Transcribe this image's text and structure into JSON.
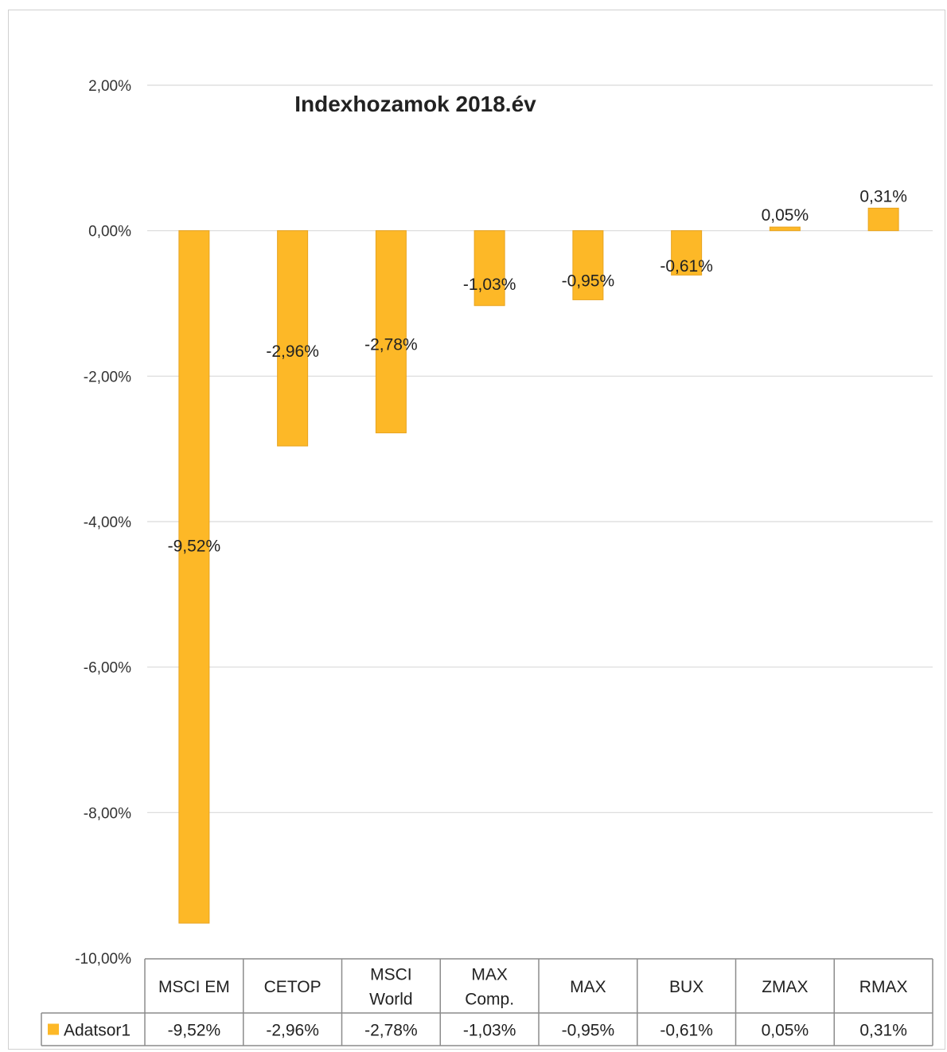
{
  "chart_data": {
    "type": "bar",
    "title": "Indexhozamok 2018.év",
    "categories": [
      [
        "MSCI EM"
      ],
      [
        "CETOP"
      ],
      [
        "MSCI",
        "World"
      ],
      [
        "MAX",
        "Comp."
      ],
      [
        "MAX"
      ],
      [
        "BUX"
      ],
      [
        "ZMAX"
      ],
      [
        "RMAX"
      ]
    ],
    "series": [
      {
        "name": "Adatsor1",
        "values": [
          -9.52,
          -2.96,
          -2.78,
          -1.03,
          -0.95,
          -0.61,
          0.05,
          0.31
        ],
        "labels": [
          "-9,52%",
          "-2,96%",
          "-2,78%",
          "-1,03%",
          "-0,95%",
          "-0,61%",
          "0,05%",
          "0,31%"
        ],
        "color": "#FDB827"
      }
    ],
    "ylim": [
      -10,
      2
    ],
    "yticks": [
      2,
      0,
      -2,
      -4,
      -6,
      -8,
      -10
    ],
    "ytick_labels": [
      "2,00%",
      "0,00%",
      "-2,00%",
      "-4,00%",
      "-6,00%",
      "-8,00%",
      "-10,00%"
    ],
    "grid": true,
    "legend": "data-table-left",
    "data_table": true,
    "colors": {
      "bar": "#FDB827",
      "bar_edge": "#E8A420",
      "grid": "#d9d9d9",
      "table_border": "#8c8c8c"
    }
  }
}
